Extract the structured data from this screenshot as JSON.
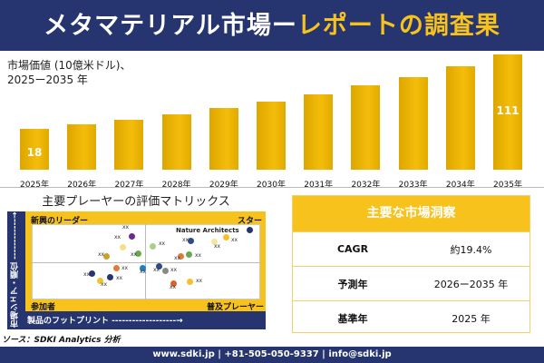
{
  "header": {
    "title_main": "メタマテリアル市場ー",
    "title_accent": "レポートの調査果"
  },
  "chart_data": {
    "type": "bar",
    "title_line1": "市場価値 (10億米ドル)、",
    "title_line2": "2025ー2035 年",
    "categories": [
      "2025年",
      "2026年",
      "2027年",
      "2028年",
      "2029年",
      "2030年",
      "2031年",
      "2032年",
      "2033年",
      "2034年",
      "2035年"
    ],
    "values": [
      18,
      24,
      29,
      36,
      44,
      52,
      61,
      72,
      83,
      96,
      111
    ],
    "data_labels": {
      "first": "18",
      "last": "111"
    },
    "bar_color": "#f5bd0a"
  },
  "matrix": {
    "title": "主要プレーヤーの評価マトリックス",
    "quadrants": {
      "top_left": "新興のリーダー",
      "top_right": "スター",
      "bottom_left": "参加者",
      "bottom_right": "普及プレーヤー"
    },
    "y_axis": "市場シェア・順位 ------------→",
    "x_axis": "製品のフットプリント -------------------→",
    "highlight": "Nature Architects",
    "point_label": "xx",
    "colors": [
      "#6a2c91",
      "#f5e08a",
      "#6aa84f",
      "#c9a227",
      "#a8d08d",
      "#2e4a87",
      "#f7e4a0",
      "#f2c12e",
      "#263570",
      "#e07b39",
      "#6aa84f",
      "#e07b39",
      "#1f7fc0",
      "#263570",
      "#263570",
      "#f2c12e",
      "#2e4a87",
      "#888888",
      "#d9622b",
      "#f2c12e"
    ]
  },
  "source": "ソース：SDKI Analytics 分析",
  "insights": {
    "title": "主要な市場洞察",
    "rows": [
      {
        "k": "CAGR",
        "v": "約19.4%"
      },
      {
        "k": "予測年",
        "v": "2026ー2035 年"
      },
      {
        "k": "基準年",
        "v": "2025 年"
      }
    ]
  },
  "footer": "www.sdki.jp | +81-505-050-9337 | info@sdki.jp",
  "colors": {
    "navy": "#263570",
    "gold": "#f7c21c"
  }
}
